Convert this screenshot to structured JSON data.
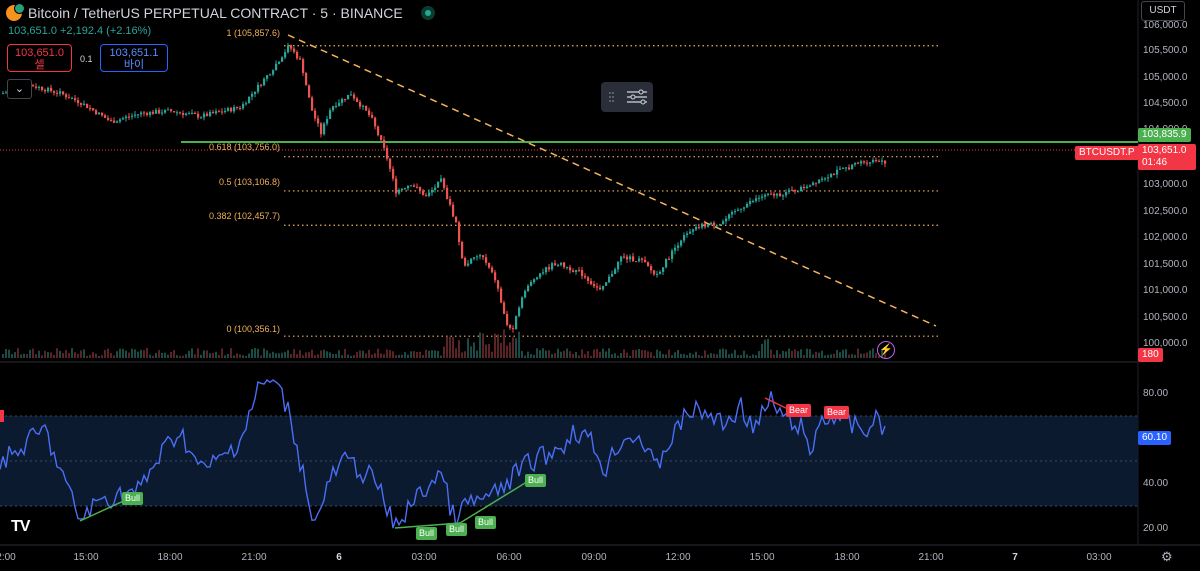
{
  "header": {
    "symbol": "Bitcoin / TetherUS PERPETUAL CONTRACT · 5 · BINANCE",
    "price_change": "103,651.0  +2,192.4 (+2.16%)",
    "currency": "USDT"
  },
  "trade_panel": {
    "sell_price": "103,651.0",
    "sell_label": "셀",
    "quantity": "0.1",
    "buy_price": "103,651.1",
    "buy_label": "바이"
  },
  "fib_levels": [
    {
      "label": "1 (105,857.6)",
      "value": 105857.6
    },
    {
      "label": "0.618 (103,756.0)",
      "value": 103756.0
    },
    {
      "label": "0.5 (103,106.8)",
      "value": 103106.8
    },
    {
      "label": "0.382 (102,457.7)",
      "value": 102457.7
    },
    {
      "label": "0 (100,356.1)",
      "value": 100356.1
    }
  ],
  "price_axis": [
    "106,000.0",
    "105,500.0",
    "105,000.0",
    "104,500.0",
    "104,000.0",
    "103,000.0",
    "102,500.0",
    "102,000.0",
    "101,500.0",
    "101,000.0",
    "100,500.0",
    "100,000.0"
  ],
  "price_tags": {
    "alert_line": "103,835.9",
    "symbol_tag": "BTCUSDT.P",
    "last_price": "103,651.0",
    "countdown": "01:46",
    "volume": "180"
  },
  "rsi_axis": [
    "80.00",
    "40.00",
    "20.00"
  ],
  "rsi_value": "60.10",
  "time_axis": [
    "2:00",
    "15:00",
    "18:00",
    "21:00",
    "6",
    "03:00",
    "06:00",
    "09:00",
    "12:00",
    "15:00",
    "18:00",
    "21:00",
    "7",
    "03:00"
  ],
  "divergence_labels": {
    "bull": "Bull",
    "bear": "Bear"
  },
  "logo": "TV",
  "colors": {
    "up": "#26a69a",
    "down": "#ef5350",
    "rsi": "#4a6ef5",
    "fib": "#f0b05a",
    "alert": "#4caf50",
    "trend": "#f5b35c"
  }
}
